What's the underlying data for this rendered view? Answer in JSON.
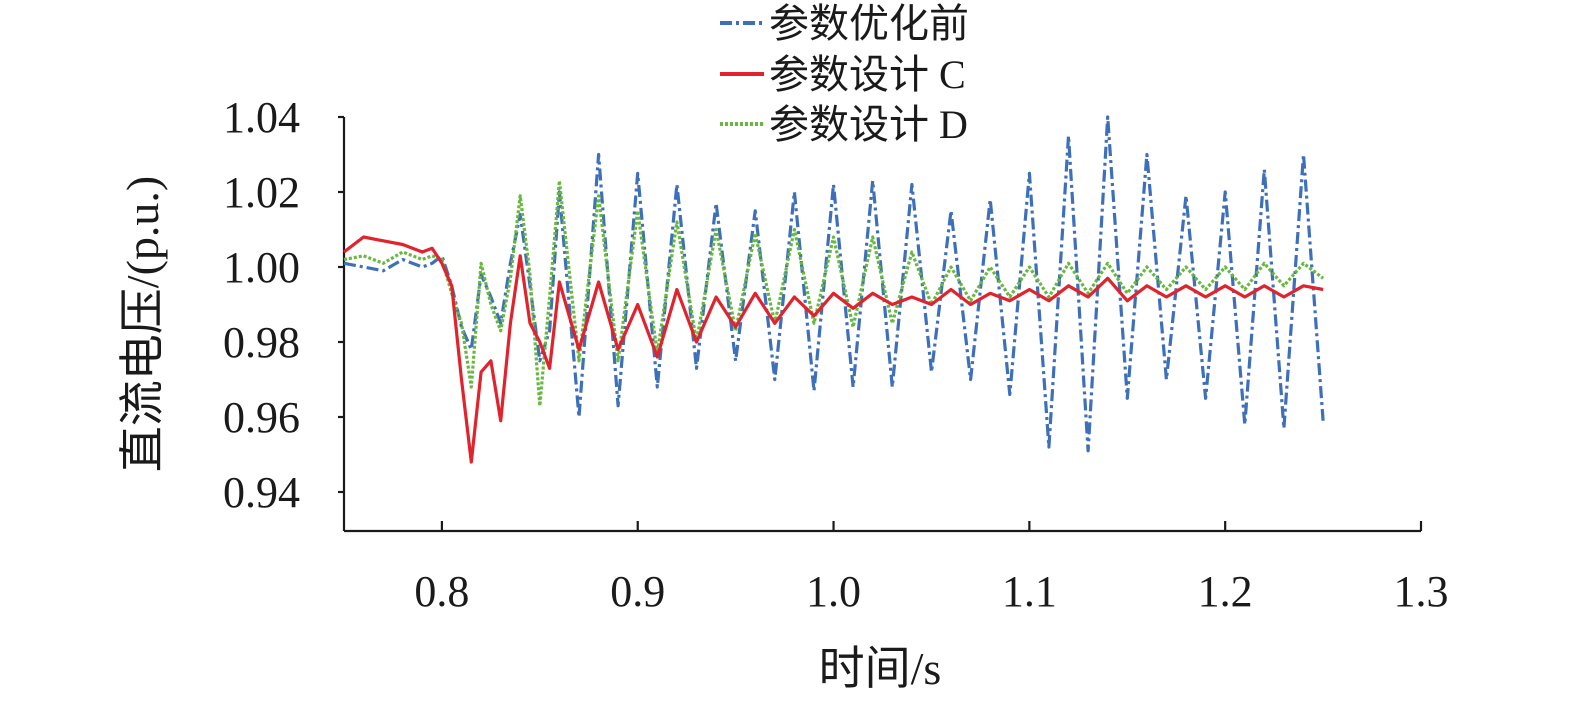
{
  "chart_data": {
    "type": "line",
    "xlabel": "时间/s",
    "ylabel": "直流电压/(p.u.)",
    "xlim": [
      0.75,
      1.3
    ],
    "ylim": [
      0.93,
      1.04
    ],
    "xticks": [
      0.8,
      0.9,
      1.0,
      1.1,
      1.2,
      1.3
    ],
    "xtick_labels": [
      "0.8",
      "0.9",
      "1.0",
      "1.1",
      "1.2",
      "1.3"
    ],
    "yticks": [
      0.94,
      0.96,
      0.98,
      1.0,
      1.02,
      1.04
    ],
    "ytick_labels": [
      "0.94",
      "0.96",
      "0.98",
      "1.00",
      "1.02",
      "1.04"
    ],
    "grid": false,
    "legend_position": "top-center",
    "series": [
      {
        "name": "参数优化前",
        "color": "#3e6fba",
        "dash": "dash-dot",
        "x": [
          0.75,
          0.76,
          0.77,
          0.78,
          0.79,
          0.795,
          0.8,
          0.805,
          0.81,
          0.815,
          0.82,
          0.825,
          0.83,
          0.835,
          0.84,
          0.845,
          0.85,
          0.855,
          0.86,
          0.87,
          0.88,
          0.89,
          0.9,
          0.91,
          0.92,
          0.93,
          0.94,
          0.95,
          0.96,
          0.97,
          0.98,
          0.99,
          1.0,
          1.01,
          1.02,
          1.03,
          1.04,
          1.05,
          1.06,
          1.07,
          1.08,
          1.09,
          1.1,
          1.11,
          1.12,
          1.13,
          1.14,
          1.15,
          1.16,
          1.17,
          1.18,
          1.19,
          1.2,
          1.21,
          1.22,
          1.23,
          1.24,
          1.25
        ],
        "y": [
          1.001,
          1.0,
          0.999,
          1.002,
          1.0,
          1.001,
          1.003,
          0.995,
          0.984,
          0.978,
          0.998,
          0.992,
          0.985,
          1.001,
          1.014,
          0.995,
          0.975,
          0.983,
          1.02,
          0.96,
          1.03,
          0.963,
          1.025,
          0.968,
          1.022,
          0.973,
          1.017,
          0.975,
          1.015,
          0.97,
          1.02,
          0.967,
          1.022,
          0.968,
          1.023,
          0.968,
          1.022,
          0.972,
          1.015,
          0.97,
          1.018,
          0.966,
          1.025,
          0.952,
          1.035,
          0.951,
          1.04,
          0.965,
          1.03,
          0.97,
          1.019,
          0.965,
          1.02,
          0.958,
          1.026,
          0.957,
          1.03,
          0.959
        ]
      },
      {
        "name": "参数设计 C",
        "color": "#e0232c",
        "dash": "solid",
        "x": [
          0.75,
          0.76,
          0.77,
          0.78,
          0.79,
          0.795,
          0.8,
          0.805,
          0.81,
          0.815,
          0.82,
          0.825,
          0.83,
          0.835,
          0.84,
          0.845,
          0.85,
          0.855,
          0.86,
          0.87,
          0.88,
          0.89,
          0.9,
          0.91,
          0.92,
          0.93,
          0.94,
          0.95,
          0.96,
          0.97,
          0.98,
          0.99,
          1.0,
          1.01,
          1.02,
          1.03,
          1.04,
          1.05,
          1.06,
          1.07,
          1.08,
          1.09,
          1.1,
          1.11,
          1.12,
          1.13,
          1.14,
          1.15,
          1.16,
          1.17,
          1.18,
          1.19,
          1.2,
          1.21,
          1.22,
          1.23,
          1.24,
          1.25
        ],
        "y": [
          1.004,
          1.008,
          1.007,
          1.006,
          1.004,
          1.005,
          1.001,
          0.995,
          0.97,
          0.948,
          0.972,
          0.975,
          0.959,
          0.985,
          1.003,
          0.985,
          0.98,
          0.973,
          0.996,
          0.978,
          0.996,
          0.978,
          0.99,
          0.976,
          0.994,
          0.98,
          0.992,
          0.984,
          0.993,
          0.985,
          0.992,
          0.987,
          0.993,
          0.989,
          0.993,
          0.99,
          0.992,
          0.99,
          0.994,
          0.99,
          0.993,
          0.991,
          0.994,
          0.991,
          0.995,
          0.992,
          0.997,
          0.991,
          0.995,
          0.992,
          0.995,
          0.992,
          0.995,
          0.992,
          0.995,
          0.992,
          0.995,
          0.994
        ]
      },
      {
        "name": "参数设计 D",
        "color": "#67b83e",
        "dash": "dotted",
        "x": [
          0.75,
          0.76,
          0.77,
          0.78,
          0.79,
          0.795,
          0.8,
          0.805,
          0.81,
          0.815,
          0.82,
          0.825,
          0.83,
          0.835,
          0.84,
          0.845,
          0.85,
          0.855,
          0.86,
          0.87,
          0.88,
          0.89,
          0.9,
          0.91,
          0.92,
          0.93,
          0.94,
          0.95,
          0.96,
          0.97,
          0.98,
          0.99,
          1.0,
          1.01,
          1.02,
          1.03,
          1.04,
          1.05,
          1.06,
          1.07,
          1.08,
          1.09,
          1.1,
          1.11,
          1.12,
          1.13,
          1.14,
          1.15,
          1.16,
          1.17,
          1.18,
          1.19,
          1.2,
          1.21,
          1.22,
          1.23,
          1.24,
          1.25
        ],
        "y": [
          1.002,
          1.003,
          1.001,
          1.004,
          1.002,
          1.003,
          1.002,
          0.993,
          0.985,
          0.968,
          1.001,
          0.99,
          0.983,
          0.997,
          1.019,
          0.998,
          0.963,
          0.992,
          1.023,
          0.975,
          1.019,
          0.975,
          1.015,
          0.977,
          1.012,
          0.98,
          1.01,
          0.983,
          1.009,
          0.985,
          1.01,
          0.985,
          1.008,
          0.984,
          1.008,
          0.985,
          1.004,
          0.99,
          1.0,
          0.991,
          1.0,
          0.992,
          1.0,
          0.992,
          1.001,
          0.993,
          1.001,
          0.993,
          1.0,
          0.994,
          1.0,
          0.994,
          1.0,
          0.994,
          1.001,
          0.995,
          1.001,
          0.997
        ]
      }
    ]
  }
}
